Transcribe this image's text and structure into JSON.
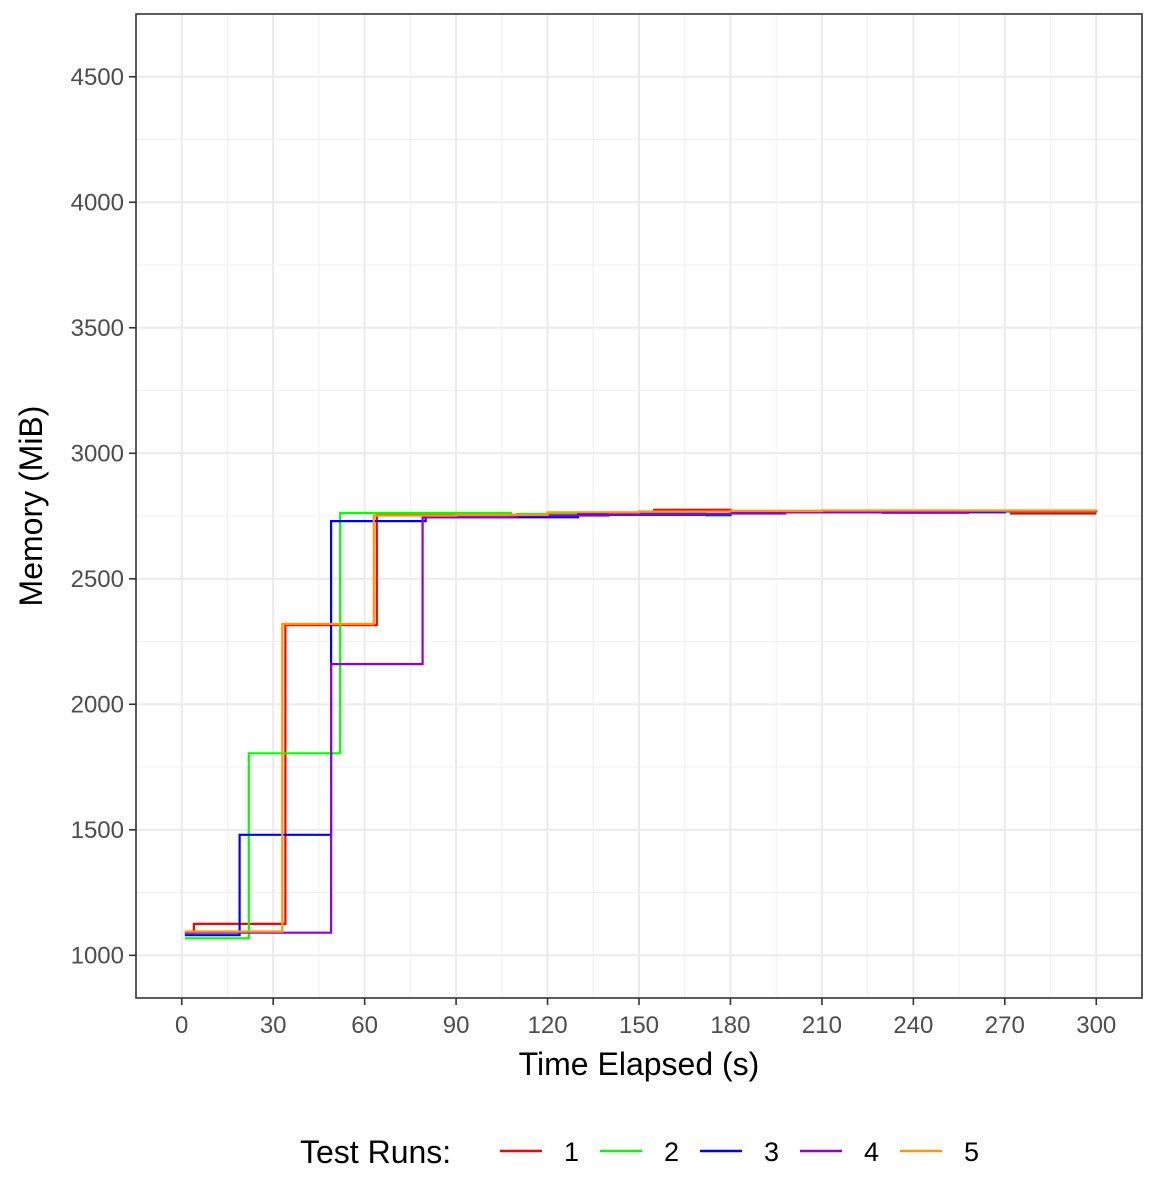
{
  "chart_data": {
    "type": "line",
    "xlabel": "Time Elapsed (s)",
    "ylabel": "Memory (MiB)",
    "xlim": [
      -15,
      315
    ],
    "ylim": [
      830,
      4750
    ],
    "x_ticks": [
      0,
      30,
      60,
      90,
      120,
      150,
      180,
      210,
      240,
      270,
      300
    ],
    "y_ticks": [
      1000,
      1500,
      2000,
      2500,
      3000,
      3500,
      4000,
      4500
    ],
    "x_tick_labels": [
      "0",
      "30",
      "60",
      "90",
      "120",
      "150",
      "180",
      "210",
      "240",
      "270",
      "300"
    ],
    "y_tick_labels": [
      "1000",
      "1500",
      "2000",
      "2500",
      "3000",
      "3500",
      "4000",
      "4500"
    ],
    "grid": true,
    "legend": {
      "title": "Test Runs:",
      "position": "bottom"
    },
    "series": [
      {
        "name": "1",
        "color": "#ff0000",
        "x": [
          1,
          4,
          33,
          34,
          63,
          64,
          90,
          120,
          150,
          155,
          180,
          210,
          240,
          272,
          300
        ],
        "y": [
          1090,
          1125,
          1125,
          2315,
          2315,
          2760,
          2755,
          2760,
          2765,
          2775,
          2770,
          2768,
          2768,
          2760,
          2760
        ]
      },
      {
        "name": "2",
        "color": "#00ff00",
        "x": [
          1,
          21,
          22,
          51,
          52,
          80,
          108,
          110,
          140,
          172,
          180,
          210,
          240,
          270,
          300
        ],
        "y": [
          1068,
          1068,
          1805,
          1805,
          2762,
          2762,
          2748,
          2758,
          2760,
          2752,
          2765,
          2768,
          2768,
          2768,
          2770
        ]
      },
      {
        "name": "3",
        "color": "#0000ff",
        "x": [
          1,
          18,
          19,
          48,
          49,
          80,
          110,
          130,
          140,
          170,
          180,
          210,
          240,
          270,
          300
        ],
        "y": [
          1080,
          1080,
          1480,
          1480,
          2730,
          2745,
          2745,
          2760,
          2755,
          2755,
          2765,
          2765,
          2765,
          2770,
          2775
        ]
      },
      {
        "name": "4",
        "color": "#9400d3",
        "x": [
          1,
          48,
          49,
          78,
          79,
          110,
          140,
          180,
          198,
          230,
          258,
          270,
          300
        ],
        "y": [
          1090,
          1090,
          2160,
          2160,
          2745,
          2752,
          2758,
          2760,
          2765,
          2763,
          2768,
          2770,
          2770
        ]
      },
      {
        "name": "5",
        "color": "#ff9900",
        "x": [
          1,
          4,
          32,
          33,
          62,
          63,
          90,
          120,
          150,
          180,
          210,
          240,
          270,
          300
        ],
        "y": [
          1095,
          1095,
          1095,
          2320,
          2320,
          2752,
          2755,
          2765,
          2768,
          2770,
          2772,
          2772,
          2772,
          2775
        ]
      }
    ]
  }
}
